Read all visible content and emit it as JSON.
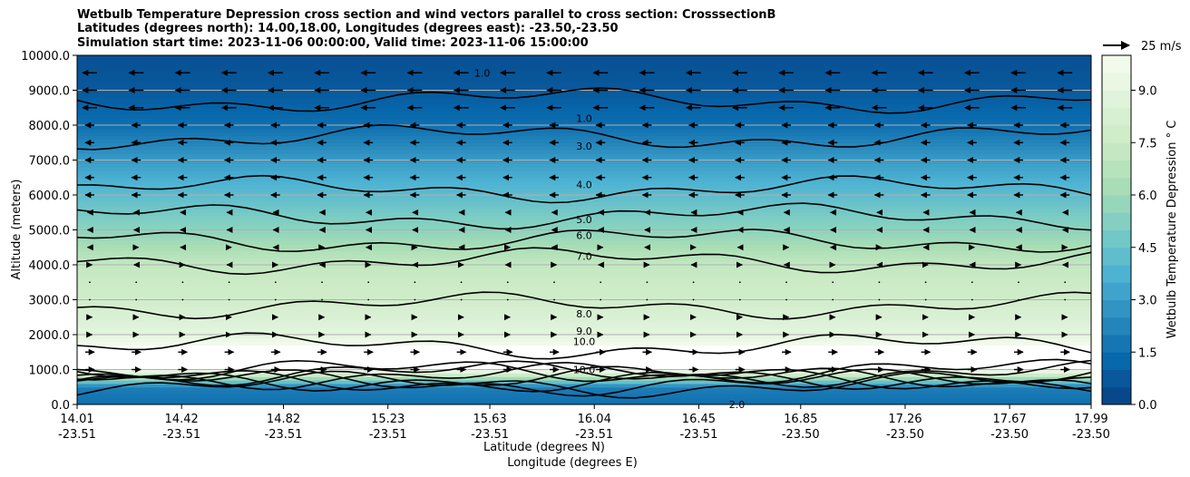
{
  "chart_data": {
    "type": "heatmap",
    "title_lines": [
      "Wetbulb Temperature Depression cross section and wind vectors parallel to cross section: CrosssectionB",
      "Latitudes (degrees north): 14.00,18.00, Longitudes (degrees east): -23.50,-23.50",
      "Simulation start time: 2023-11-06 00:00:00, Valid time: 2023-11-06 15:00:00"
    ],
    "ylabel": "Altitude (meters)",
    "xlabel_lines": [
      "Latitude (degrees N)",
      "Longitude (degrees E)"
    ],
    "colorbar_label": "Wetbulb Temperature Depression ° C",
    "quiver_key": "25 m/s",
    "ylim": [
      0,
      10000
    ],
    "y_ticks": [
      "0.0",
      "1000.0",
      "2000.0",
      "3000.0",
      "4000.0",
      "5000.0",
      "6000.0",
      "7000.0",
      "8000.0",
      "9000.0",
      "10000.0"
    ],
    "x_ticks": [
      {
        "lat": "14.01",
        "lon": "-23.51"
      },
      {
        "lat": "14.42",
        "lon": "-23.51"
      },
      {
        "lat": "14.82",
        "lon": "-23.51"
      },
      {
        "lat": "15.23",
        "lon": "-23.51"
      },
      {
        "lat": "15.63",
        "lon": "-23.51"
      },
      {
        "lat": "16.04",
        "lon": "-23.51"
      },
      {
        "lat": "16.45",
        "lon": "-23.51"
      },
      {
        "lat": "16.85",
        "lon": "-23.50"
      },
      {
        "lat": "17.26",
        "lon": "-23.50"
      },
      {
        "lat": "17.67",
        "lon": "-23.50"
      },
      {
        "lat": "17.99",
        "lon": "-23.50"
      }
    ],
    "colorbar_range": [
      0,
      10
    ],
    "colorbar_ticks": [
      "0.0",
      "1.5",
      "3.0",
      "4.5",
      "6.0",
      "7.5",
      "9.0"
    ],
    "colormap": [
      "#084081",
      "#0868ac",
      "#2b8cbe",
      "#4eb3d3",
      "#7bccc4",
      "#a8ddb5",
      "#ccebc5",
      "#e0f3db",
      "#f7fcf0"
    ],
    "contour_levels": [
      1,
      2,
      3,
      4,
      5,
      6,
      7,
      8,
      9,
      10
    ],
    "profile_by_altitude": [
      {
        "alt": 0,
        "value": 1.5
      },
      {
        "alt": 500,
        "value": 2.0
      },
      {
        "alt": 1000,
        "value": 10.0
      },
      {
        "alt": 1500,
        "value": 10.5
      },
      {
        "alt": 2000,
        "value": 9.0
      },
      {
        "alt": 3000,
        "value": 7.8
      },
      {
        "alt": 4000,
        "value": 7.2
      },
      {
        "alt": 5000,
        "value": 5.5
      },
      {
        "alt": 6000,
        "value": 4.2
      },
      {
        "alt": 7000,
        "value": 3.0
      },
      {
        "alt": 8000,
        "value": 1.5
      },
      {
        "alt": 9000,
        "value": 0.8
      },
      {
        "alt": 10000,
        "value": 0.5
      }
    ],
    "contour_labels": [
      {
        "text": "1.0",
        "x": 16.0,
        "alt": 8200
      },
      {
        "text": "1.0",
        "x": 15.6,
        "alt": 9500
      },
      {
        "text": "3.0",
        "x": 16.0,
        "alt": 7400
      },
      {
        "text": "4.0",
        "x": 16.0,
        "alt": 6300
      },
      {
        "text": "5.0",
        "x": 16.0,
        "alt": 5300
      },
      {
        "text": "6.0",
        "x": 16.0,
        "alt": 4850
      },
      {
        "text": "7.0",
        "x": 16.0,
        "alt": 4250
      },
      {
        "text": "8.0",
        "x": 16.0,
        "alt": 2600
      },
      {
        "text": "9.0",
        "x": 16.0,
        "alt": 2100
      },
      {
        "text": "10.0",
        "x": 16.0,
        "alt": 1800
      },
      {
        "text": "10.0",
        "x": 16.0,
        "alt": 1000
      },
      {
        "text": "2.0",
        "x": 16.6,
        "alt": 0
      }
    ],
    "wind_rows": [
      {
        "alt": 9500,
        "dir": "east-to-west",
        "speed": "strong"
      },
      {
        "alt": 9000,
        "dir": "east-to-west",
        "speed": "strong"
      },
      {
        "alt": 8500,
        "dir": "east-to-west",
        "speed": "strong"
      },
      {
        "alt": 8000,
        "dir": "east-to-west",
        "speed": "moderate"
      },
      {
        "alt": 7500,
        "dir": "east-to-west",
        "speed": "moderate"
      },
      {
        "alt": 7000,
        "dir": "east-to-west",
        "speed": "moderate"
      },
      {
        "alt": 6500,
        "dir": "east-to-west",
        "speed": "moderate"
      },
      {
        "alt": 6000,
        "dir": "east-to-west",
        "speed": "moderate"
      },
      {
        "alt": 5500,
        "dir": "east-to-west",
        "speed": "weak"
      },
      {
        "alt": 5000,
        "dir": "east-to-west",
        "speed": "weak"
      },
      {
        "alt": 4500,
        "dir": "mixed",
        "speed": "weak"
      },
      {
        "alt": 4000,
        "dir": "mixed",
        "speed": "weak"
      },
      {
        "alt": 3500,
        "dir": "calm",
        "speed": "calm"
      },
      {
        "alt": 3000,
        "dir": "calm",
        "speed": "calm"
      },
      {
        "alt": 2500,
        "dir": "west-to-east",
        "speed": "weak"
      },
      {
        "alt": 2000,
        "dir": "west-to-east",
        "speed": "weak"
      },
      {
        "alt": 1500,
        "dir": "west-to-east",
        "speed": "moderate"
      },
      {
        "alt": 1000,
        "dir": "west-to-east",
        "speed": "moderate"
      }
    ]
  }
}
